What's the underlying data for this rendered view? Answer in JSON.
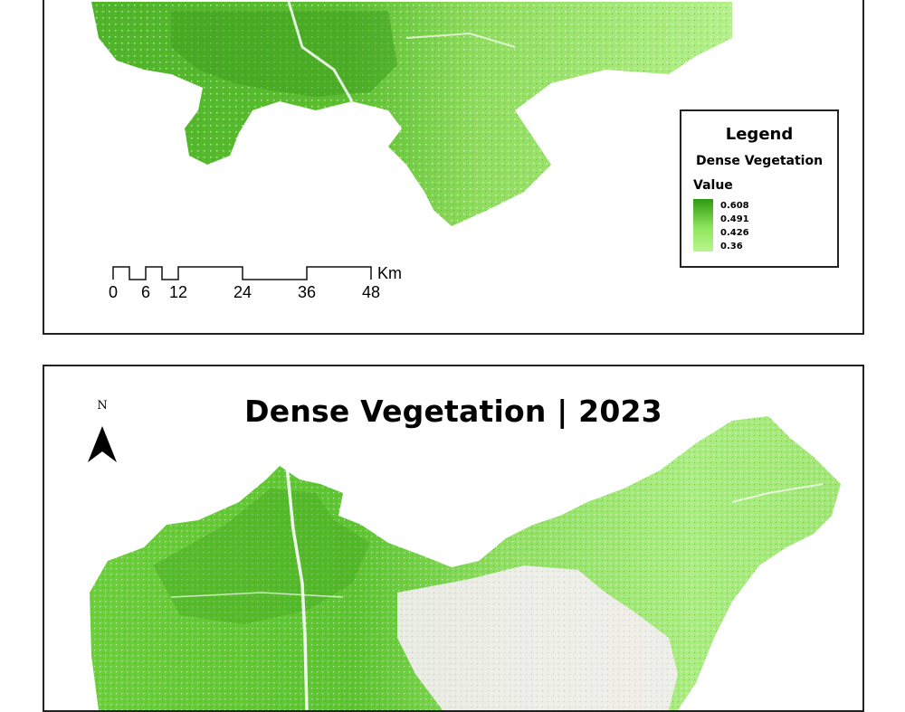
{
  "top_map": {
    "legend": {
      "title": "Legend",
      "layer": "Dense Vegetation",
      "value_label": "Value",
      "ticks": [
        "0.608",
        "0.491",
        "0.426",
        "0.36"
      ],
      "ramp_colors": [
        "#2f9a12",
        "#8fe65c",
        "#b9f58e"
      ]
    },
    "scale_bar": {
      "labels": [
        "0",
        "6",
        "12",
        "24",
        "36",
        "48"
      ],
      "unit": "Km"
    }
  },
  "bottom_map": {
    "title": "Dense Vegetation | 2023",
    "north_label": "N"
  },
  "colors": {
    "dense_green": "#3f9f1f",
    "mid_green": "#6fcf3a",
    "light_green": "#a9ee7e",
    "urban_pink": "#f6eef4"
  }
}
